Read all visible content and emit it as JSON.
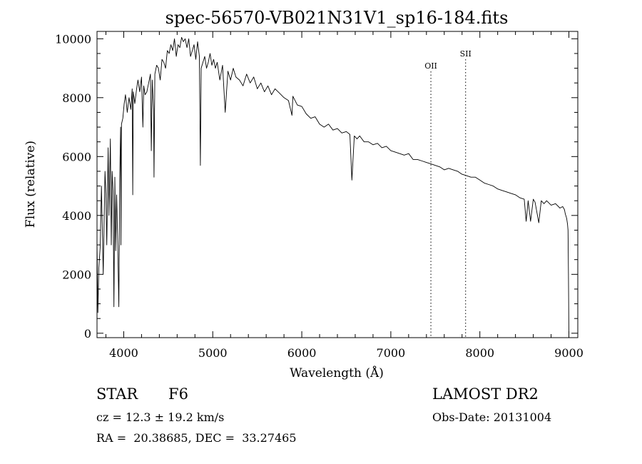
{
  "chart_data": {
    "type": "line",
    "title": "spec-56570-VB021N31V1_sp16-184.fits",
    "xlabel": "Wavelength (Å)",
    "ylabel": "Flux (relative)",
    "xlim": [
      3700,
      9100
    ],
    "ylim": [
      -150,
      10250
    ],
    "xticks": [
      4000,
      5000,
      6000,
      7000,
      8000,
      9000
    ],
    "yticks": [
      0,
      2000,
      4000,
      6000,
      8000,
      10000
    ],
    "grid": false,
    "lines": [
      {
        "label": "OII",
        "x": 7450
      },
      {
        "label": "SII",
        "x": 7840
      }
    ],
    "series": [
      {
        "x": [
          3700,
          3710,
          3720,
          3735,
          3750,
          3770,
          3790,
          3800,
          3810,
          3825,
          3835,
          3850,
          3860,
          3870,
          3880,
          3890,
          3900,
          3910,
          3920,
          3933,
          3945,
          3955,
          3965,
          3969,
          3975,
          3990,
          4005,
          4020,
          4040,
          4060,
          4080,
          4095,
          4101,
          4108,
          4125,
          4145,
          4160,
          4180,
          4200,
          4215,
          4225,
          4240,
          4260,
          4280,
          4300,
          4310,
          4320,
          4335,
          4340,
          4350,
          4370,
          4390,
          4410,
          4430,
          4450,
          4470,
          4490,
          4510,
          4530,
          4550,
          4570,
          4590,
          4610,
          4630,
          4650,
          4670,
          4690,
          4710,
          4730,
          4750,
          4770,
          4790,
          4810,
          4830,
          4850,
          4861,
          4870,
          4890,
          4910,
          4930,
          4950,
          4970,
          4990,
          5010,
          5030,
          5050,
          5080,
          5110,
          5140,
          5170,
          5200,
          5230,
          5260,
          5300,
          5340,
          5380,
          5420,
          5460,
          5500,
          5540,
          5580,
          5620,
          5660,
          5700,
          5750,
          5800,
          5850,
          5890,
          5900,
          5950,
          6000,
          6050,
          6100,
          6150,
          6200,
          6250,
          6300,
          6350,
          6400,
          6450,
          6500,
          6540,
          6563,
          6590,
          6620,
          6650,
          6700,
          6750,
          6800,
          6850,
          6900,
          6950,
          7000,
          7050,
          7100,
          7150,
          7200,
          7250,
          7300,
          7350,
          7400,
          7450,
          7500,
          7550,
          7600,
          7650,
          7700,
          7750,
          7800,
          7850,
          7900,
          7950,
          8000,
          8050,
          8100,
          8150,
          8200,
          8250,
          8300,
          8350,
          8400,
          8450,
          8498,
          8520,
          8542,
          8570,
          8600,
          8620,
          8662,
          8690,
          8720,
          8750,
          8800,
          8850,
          8900,
          8930,
          8950,
          8960,
          8975,
          8985,
          8990,
          8995,
          9000
        ],
        "values": [
          3100,
          700,
          2200,
          2900,
          5000,
          2000,
          5500,
          4700,
          3000,
          6300,
          4000,
          6600,
          3000,
          5500,
          4800,
          900,
          5300,
          2800,
          4700,
          3000,
          900,
          5200,
          7000,
          3000,
          7100,
          7300,
          7800,
          8100,
          7500,
          8000,
          7600,
          8300,
          4700,
          8200,
          7800,
          8300,
          8600,
          8200,
          8700,
          7000,
          8400,
          8100,
          8200,
          8500,
          8800,
          6200,
          8600,
          7600,
          5300,
          8800,
          9100,
          9000,
          8600,
          9300,
          9200,
          9000,
          9600,
          9500,
          9800,
          9600,
          10000,
          9400,
          9800,
          9700,
          10050,
          9900,
          10000,
          9700,
          10000,
          9400,
          9600,
          9800,
          9300,
          9900,
          9400,
          5700,
          9000,
          9200,
          9400,
          9000,
          9200,
          9500,
          9100,
          9300,
          9000,
          9200,
          8600,
          9100,
          7500,
          8900,
          8600,
          9000,
          8700,
          8600,
          8400,
          8800,
          8500,
          8700,
          8300,
          8500,
          8200,
          8400,
          8100,
          8300,
          8150,
          8000,
          7900,
          7400,
          8050,
          7750,
          7700,
          7450,
          7300,
          7350,
          7100,
          7000,
          7100,
          6900,
          6950,
          6800,
          6850,
          6750,
          5200,
          6700,
          6600,
          6700,
          6500,
          6500,
          6400,
          6450,
          6300,
          6350,
          6200,
          6150,
          6100,
          6050,
          6100,
          5900,
          5900,
          5850,
          5800,
          5750,
          5700,
          5650,
          5550,
          5600,
          5550,
          5500,
          5400,
          5350,
          5300,
          5300,
          5200,
          5100,
          5050,
          5000,
          4900,
          4850,
          4800,
          4750,
          4700,
          4600,
          4550,
          3800,
          4500,
          3800,
          4550,
          4450,
          3750,
          4500,
          4400,
          4500,
          4350,
          4400,
          4250,
          4300,
          4200,
          4050,
          3900,
          3700,
          3500,
          2000,
          0
        ]
      }
    ]
  },
  "info": {
    "class_label": "STAR",
    "subclass": "F6",
    "survey": "LAMOST DR2",
    "cz": "cz = 12.3 ± 19.2 km/s",
    "obs_date": "Obs-Date: 20131004",
    "coords": "RA =  20.38685, DEC =  33.27465"
  }
}
